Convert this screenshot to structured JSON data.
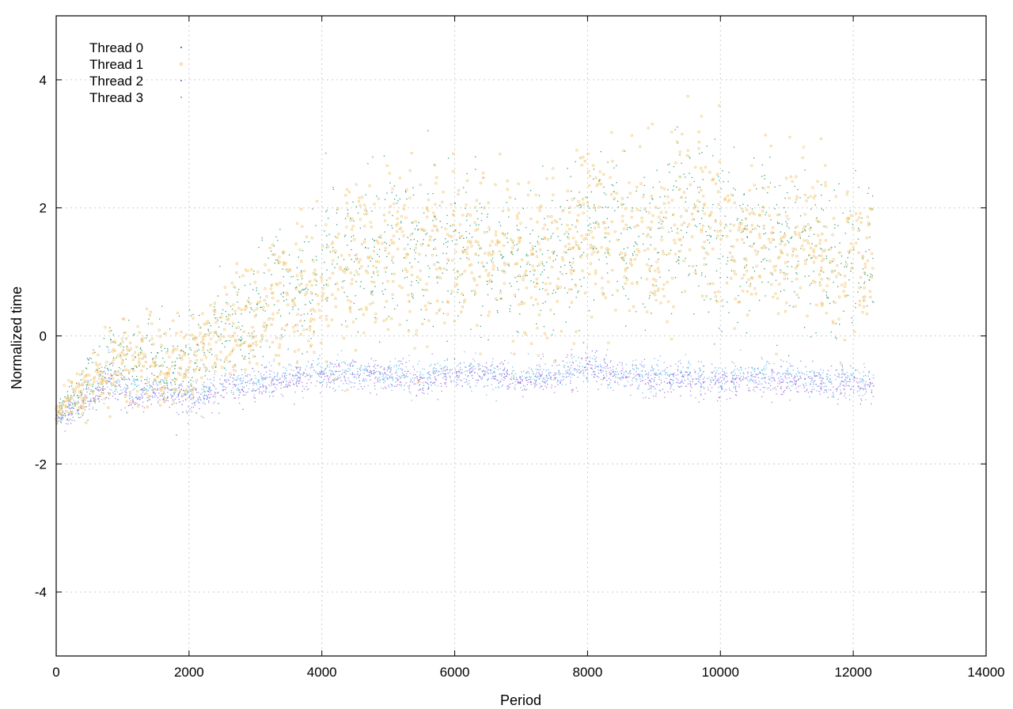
{
  "chart_data": {
    "type": "scatter",
    "title": "",
    "xlabel": "Period",
    "ylabel": "Normalized time",
    "xlim": [
      0,
      14000
    ],
    "ylim": [
      -5,
      5
    ],
    "xticks": [
      0,
      2000,
      4000,
      6000,
      8000,
      10000,
      12000,
      14000
    ],
    "yticks": [
      -4,
      -2,
      0,
      2,
      4
    ],
    "grid": true,
    "legend_position": "top-left",
    "series": [
      {
        "name": "Thread 0",
        "color": "#008b5a",
        "marker": "dot",
        "x": [
          0,
          200,
          400,
          600,
          800,
          1000,
          1200,
          1400,
          1600,
          1800,
          2000,
          2200,
          2500,
          3000,
          3500,
          4000,
          4500,
          5000,
          5500,
          6000,
          6500,
          7000,
          7500,
          8000,
          8500,
          9000,
          9500,
          10000,
          10500,
          11000,
          11500,
          12000,
          12300
        ],
        "y": [
          -1.2,
          -1.0,
          -0.8,
          -0.6,
          -0.5,
          -0.4,
          -0.4,
          -0.3,
          -0.4,
          -0.5,
          -0.4,
          -0.3,
          0.0,
          0.3,
          0.6,
          1.0,
          1.2,
          1.4,
          1.3,
          1.4,
          1.2,
          1.1,
          1.3,
          1.5,
          1.5,
          1.4,
          1.8,
          1.6,
          1.5,
          1.4,
          1.3,
          1.2,
          1.2
        ],
        "spread": [
          0.2,
          0.3,
          0.4,
          0.4,
          0.5,
          0.5,
          0.5,
          0.5,
          0.5,
          0.5,
          0.5,
          0.6,
          0.7,
          0.8,
          0.9,
          1.0,
          1.0,
          1.0,
          1.0,
          1.0,
          1.0,
          1.0,
          1.0,
          1.0,
          1.1,
          1.1,
          1.2,
          1.1,
          1.0,
          1.0,
          1.0,
          1.0,
          1.0
        ]
      },
      {
        "name": "Thread 1",
        "color": "#f0c060",
        "marker": "circle",
        "x": [
          0,
          200,
          400,
          600,
          800,
          1000,
          1200,
          1400,
          1600,
          1800,
          2000,
          2200,
          2500,
          3000,
          3500,
          4000,
          4500,
          5000,
          5500,
          6000,
          6500,
          7000,
          7500,
          8000,
          8500,
          9000,
          9500,
          10000,
          10500,
          11000,
          11500,
          12000,
          12300
        ],
        "y": [
          -1.2,
          -1.0,
          -0.8,
          -0.7,
          -0.5,
          -0.4,
          -0.4,
          -0.3,
          -0.5,
          -0.5,
          -0.4,
          -0.2,
          0.0,
          0.3,
          0.6,
          0.9,
          1.1,
          1.3,
          1.2,
          1.4,
          1.2,
          1.1,
          1.3,
          1.6,
          1.6,
          1.5,
          1.9,
          1.7,
          1.5,
          1.5,
          1.3,
          1.2,
          1.1
        ],
        "spread": [
          0.2,
          0.3,
          0.4,
          0.4,
          0.5,
          0.5,
          0.5,
          0.6,
          0.5,
          0.5,
          0.5,
          0.6,
          0.7,
          0.8,
          0.9,
          1.0,
          1.1,
          1.1,
          1.1,
          1.1,
          1.0,
          1.0,
          1.1,
          1.1,
          1.2,
          1.2,
          1.3,
          1.2,
          1.1,
          1.1,
          1.0,
          1.0,
          1.0
        ]
      },
      {
        "name": "Thread 2",
        "color": "#9b5fe0",
        "marker": "dot",
        "x": [
          0,
          200,
          400,
          600,
          800,
          1000,
          1200,
          1400,
          1600,
          1800,
          2000,
          2200,
          2500,
          3000,
          3500,
          4000,
          4500,
          5000,
          5500,
          6000,
          6500,
          7000,
          7500,
          8000,
          8500,
          9000,
          9500,
          10000,
          10500,
          11000,
          11500,
          12000,
          12300
        ],
        "y": [
          -1.3,
          -1.2,
          -1.0,
          -0.9,
          -0.7,
          -0.9,
          -1.0,
          -0.9,
          -0.9,
          -0.9,
          -1.0,
          -1.0,
          -0.8,
          -0.8,
          -0.7,
          -0.6,
          -0.6,
          -0.6,
          -0.7,
          -0.6,
          -0.6,
          -0.7,
          -0.6,
          -0.5,
          -0.6,
          -0.7,
          -0.7,
          -0.7,
          -0.7,
          -0.7,
          -0.7,
          -0.8,
          -0.8
        ],
        "spread": [
          0.1,
          0.2,
          0.2,
          0.2,
          0.3,
          0.25,
          0.2,
          0.2,
          0.2,
          0.2,
          0.2,
          0.2,
          0.2,
          0.2,
          0.2,
          0.2,
          0.2,
          0.2,
          0.2,
          0.2,
          0.2,
          0.2,
          0.2,
          0.25,
          0.2,
          0.2,
          0.2,
          0.2,
          0.2,
          0.2,
          0.2,
          0.2,
          0.2
        ]
      },
      {
        "name": "Thread 3",
        "color": "#56b4e9",
        "marker": "dot",
        "x": [
          0,
          200,
          400,
          600,
          800,
          1000,
          1200,
          1400,
          1600,
          1800,
          2000,
          2200,
          2500,
          3000,
          3500,
          4000,
          4500,
          5000,
          5500,
          6000,
          6500,
          7000,
          7500,
          8000,
          8500,
          9000,
          9500,
          10000,
          10500,
          11000,
          11500,
          12000,
          12300
        ],
        "y": [
          -1.3,
          -1.1,
          -1.0,
          -0.8,
          -0.6,
          -0.8,
          -0.9,
          -0.8,
          -0.8,
          -0.9,
          -0.9,
          -0.9,
          -0.7,
          -0.7,
          -0.6,
          -0.6,
          -0.6,
          -0.6,
          -0.6,
          -0.5,
          -0.6,
          -0.6,
          -0.6,
          -0.5,
          -0.6,
          -0.6,
          -0.6,
          -0.7,
          -0.6,
          -0.6,
          -0.7,
          -0.7,
          -0.7
        ],
        "spread": [
          0.1,
          0.2,
          0.2,
          0.2,
          0.3,
          0.25,
          0.2,
          0.2,
          0.2,
          0.2,
          0.2,
          0.2,
          0.2,
          0.2,
          0.2,
          0.2,
          0.2,
          0.2,
          0.2,
          0.2,
          0.2,
          0.2,
          0.2,
          0.25,
          0.2,
          0.2,
          0.2,
          0.2,
          0.2,
          0.2,
          0.2,
          0.2,
          0.2
        ]
      }
    ]
  }
}
